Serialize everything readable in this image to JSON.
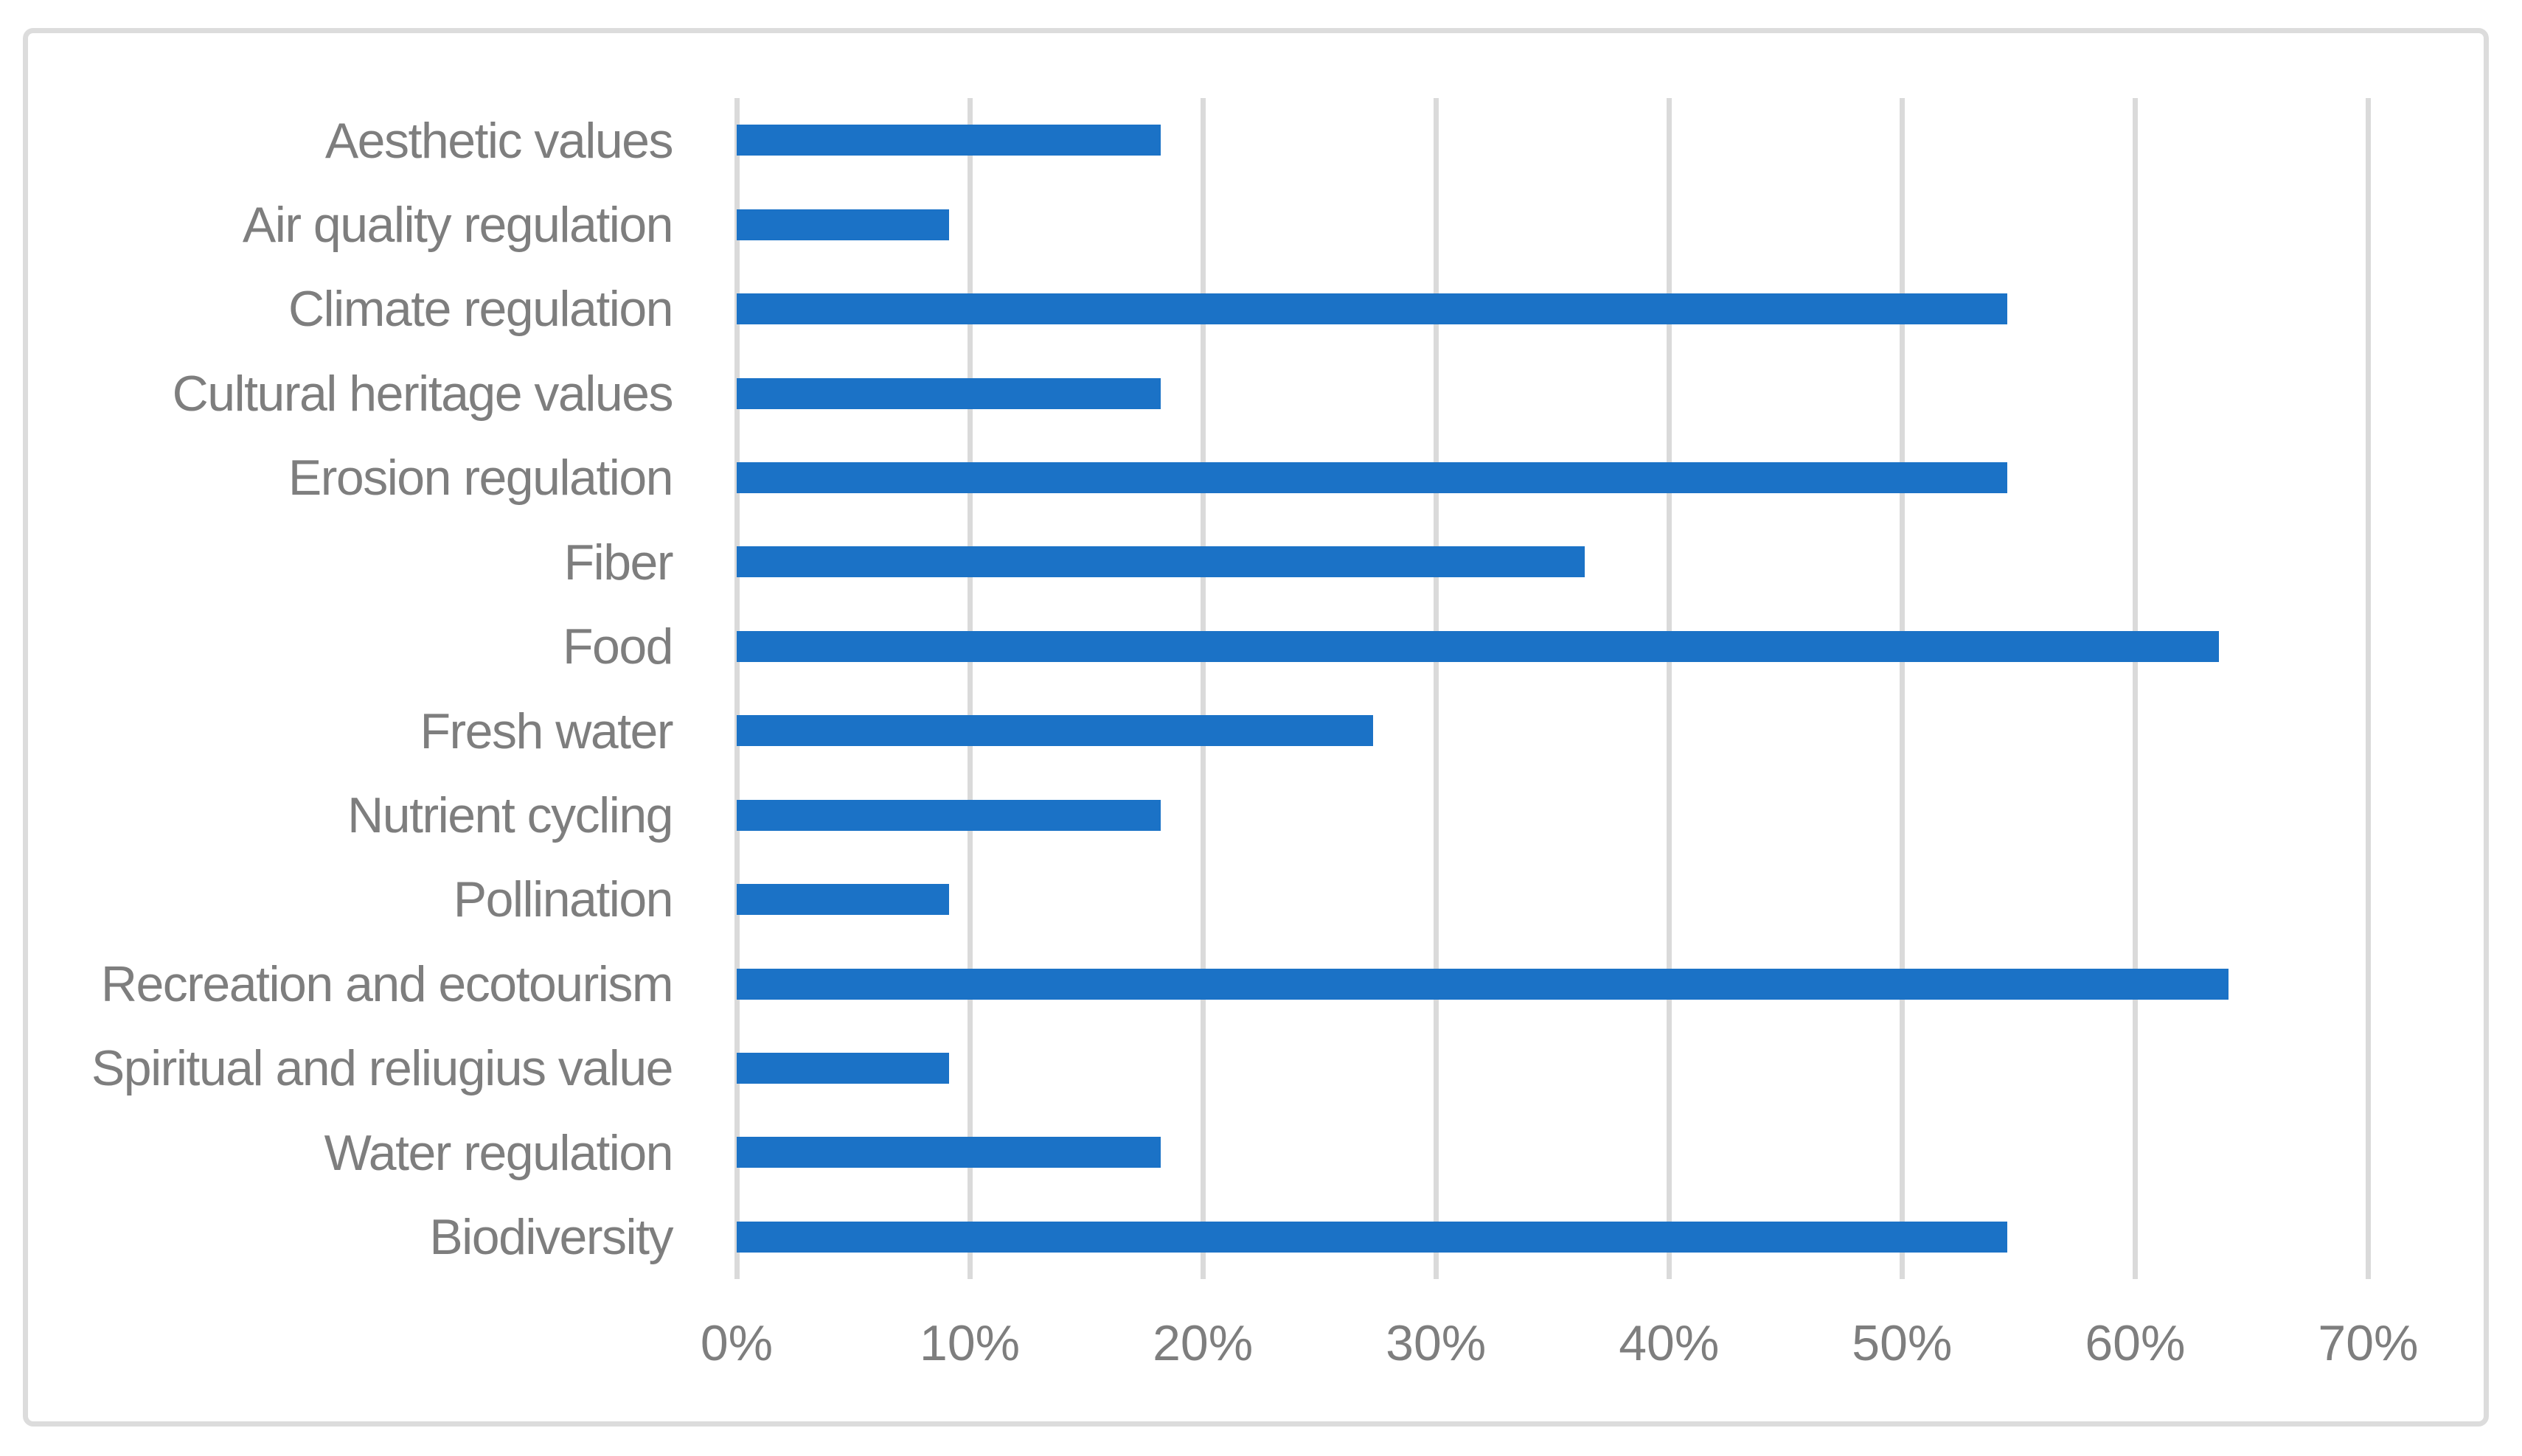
{
  "page": {
    "background_color": "#FFFFFF",
    "frame_border_color": "#DCDCDC"
  },
  "chart_data": {
    "type": "bar",
    "orientation": "horizontal",
    "title": "",
    "xlabel": "",
    "ylabel": "",
    "categories": [
      "Aesthetic values",
      "Air quality regulation",
      "Climate regulation",
      "Cultural heritage values",
      "Erosion regulation",
      "Fiber",
      "Food",
      "Fresh water",
      "Nutrient cycling",
      "Pollination",
      "Recreation and ecotourism",
      "Spiritual and reliugius value",
      "Water regulation",
      "Biodiversity"
    ],
    "values": [
      18.2,
      9.1,
      54.5,
      18.2,
      54.5,
      36.4,
      63.6,
      27.3,
      18.2,
      9.1,
      64.0,
      9.1,
      18.2,
      54.5
    ],
    "value_unit": "%",
    "xlim": [
      0,
      70
    ],
    "x_ticks": [
      0,
      10,
      20,
      30,
      40,
      50,
      60,
      70
    ],
    "x_tick_labels": [
      "0%",
      "10%",
      "20%",
      "30%",
      "40%",
      "50%",
      "60%",
      "70%"
    ],
    "grid": "vertical",
    "legend": null,
    "bar_color": "#1B72C6",
    "gridline_color": "#DADADA",
    "axis_text_color": "#7E7E7E"
  }
}
